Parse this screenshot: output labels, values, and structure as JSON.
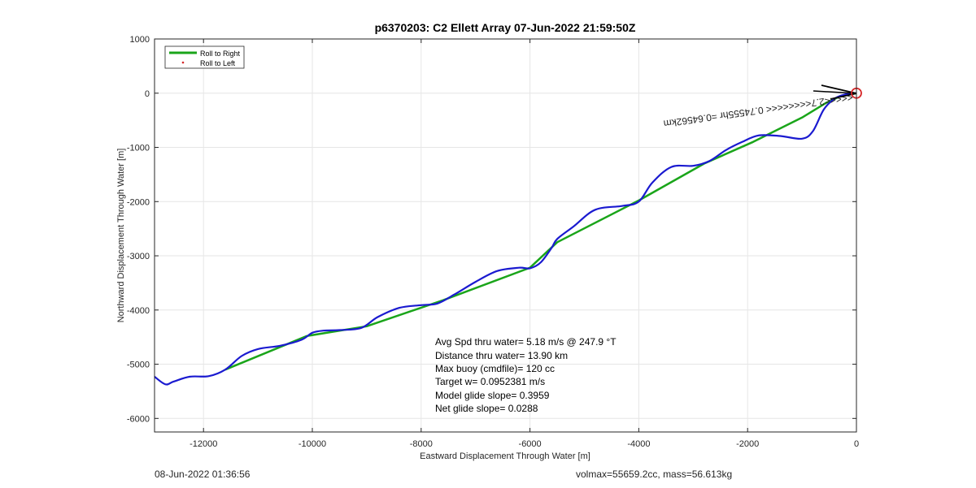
{
  "footer": {
    "timestamp": "08-Jun-2022 01:36:56",
    "vol_mass": "volmax=55659.2cc, mass=56.613kg"
  },
  "chart_data": {
    "type": "line",
    "title": "p6370203: C2 Ellett Array 07-Jun-2022 21:59:50Z",
    "xlabel": "Eastward Displacement Through Water [m]",
    "ylabel": "Northward Displacement Through Water [m]",
    "xlim": [
      -12900,
      0
    ],
    "ylim": [
      -6250,
      1000
    ],
    "xticks": [
      -12000,
      -10000,
      -8000,
      -6000,
      -4000,
      -2000,
      0
    ],
    "yticks": [
      1000,
      0,
      -1000,
      -2000,
      -3000,
      -4000,
      -5000,
      -6000
    ],
    "grid": true,
    "legend_position": "top-left",
    "colors": {
      "right": "#1aa51a",
      "left": "#d62728",
      "track": "#1a1ad0",
      "axes": "#262626",
      "grid": "#e6e6e6"
    },
    "series": [
      {
        "name": "Roll to Right",
        "style": "line",
        "x": [
          -11600,
          -10100,
          -9000,
          -7600,
          -6000,
          -5500,
          -4000,
          -2800,
          -1900,
          -1000,
          -560,
          -300,
          0
        ],
        "y": [
          -5100,
          -4480,
          -4300,
          -3820,
          -3220,
          -2750,
          -1980,
          -1300,
          -900,
          -450,
          -180,
          -60,
          0
        ]
      },
      {
        "name": "Roll to Left",
        "style": "markers",
        "x": [],
        "y": []
      },
      {
        "style": "track",
        "x": [
          -12900,
          -12700,
          -12550,
          -12250,
          -11900,
          -11600,
          -11300,
          -11000,
          -10600,
          -10200,
          -10000,
          -9800,
          -9500,
          -9100,
          -8800,
          -8400,
          -8000,
          -7700,
          -7400,
          -7000,
          -6600,
          -6200,
          -6000,
          -5800,
          -5600,
          -5500,
          -5200,
          -4800,
          -4300,
          -4000,
          -3750,
          -3400,
          -3000,
          -2700,
          -2400,
          -2100,
          -1800,
          -1400,
          -1000,
          -800,
          -600,
          -400,
          -200,
          0
        ],
        "y": [
          -5230,
          -5370,
          -5320,
          -5230,
          -5220,
          -5100,
          -4850,
          -4720,
          -4660,
          -4550,
          -4420,
          -4380,
          -4370,
          -4330,
          -4130,
          -3960,
          -3910,
          -3880,
          -3720,
          -3480,
          -3280,
          -3220,
          -3230,
          -3120,
          -2850,
          -2690,
          -2460,
          -2150,
          -2080,
          -2000,
          -1650,
          -1360,
          -1340,
          -1250,
          -1050,
          -900,
          -780,
          -790,
          -840,
          -700,
          -300,
          -100,
          -20,
          0
        ]
      }
    ],
    "arrow_label": "<<<<<2.7<<<<<<<< 0.74555hr =0.64562km",
    "marker_point": {
      "x": 0,
      "y": 0
    },
    "annotations": [
      "Avg Spd thru water=  5.18 m/s @ 247.9 °T",
      "Distance thru water= 13.90 km",
      "Max buoy (cmdfile)= 120 cc",
      "Target w= 0.0952381 m/s",
      "Model glide slope= 0.3959",
      "Net glide slope= 0.0288"
    ]
  }
}
